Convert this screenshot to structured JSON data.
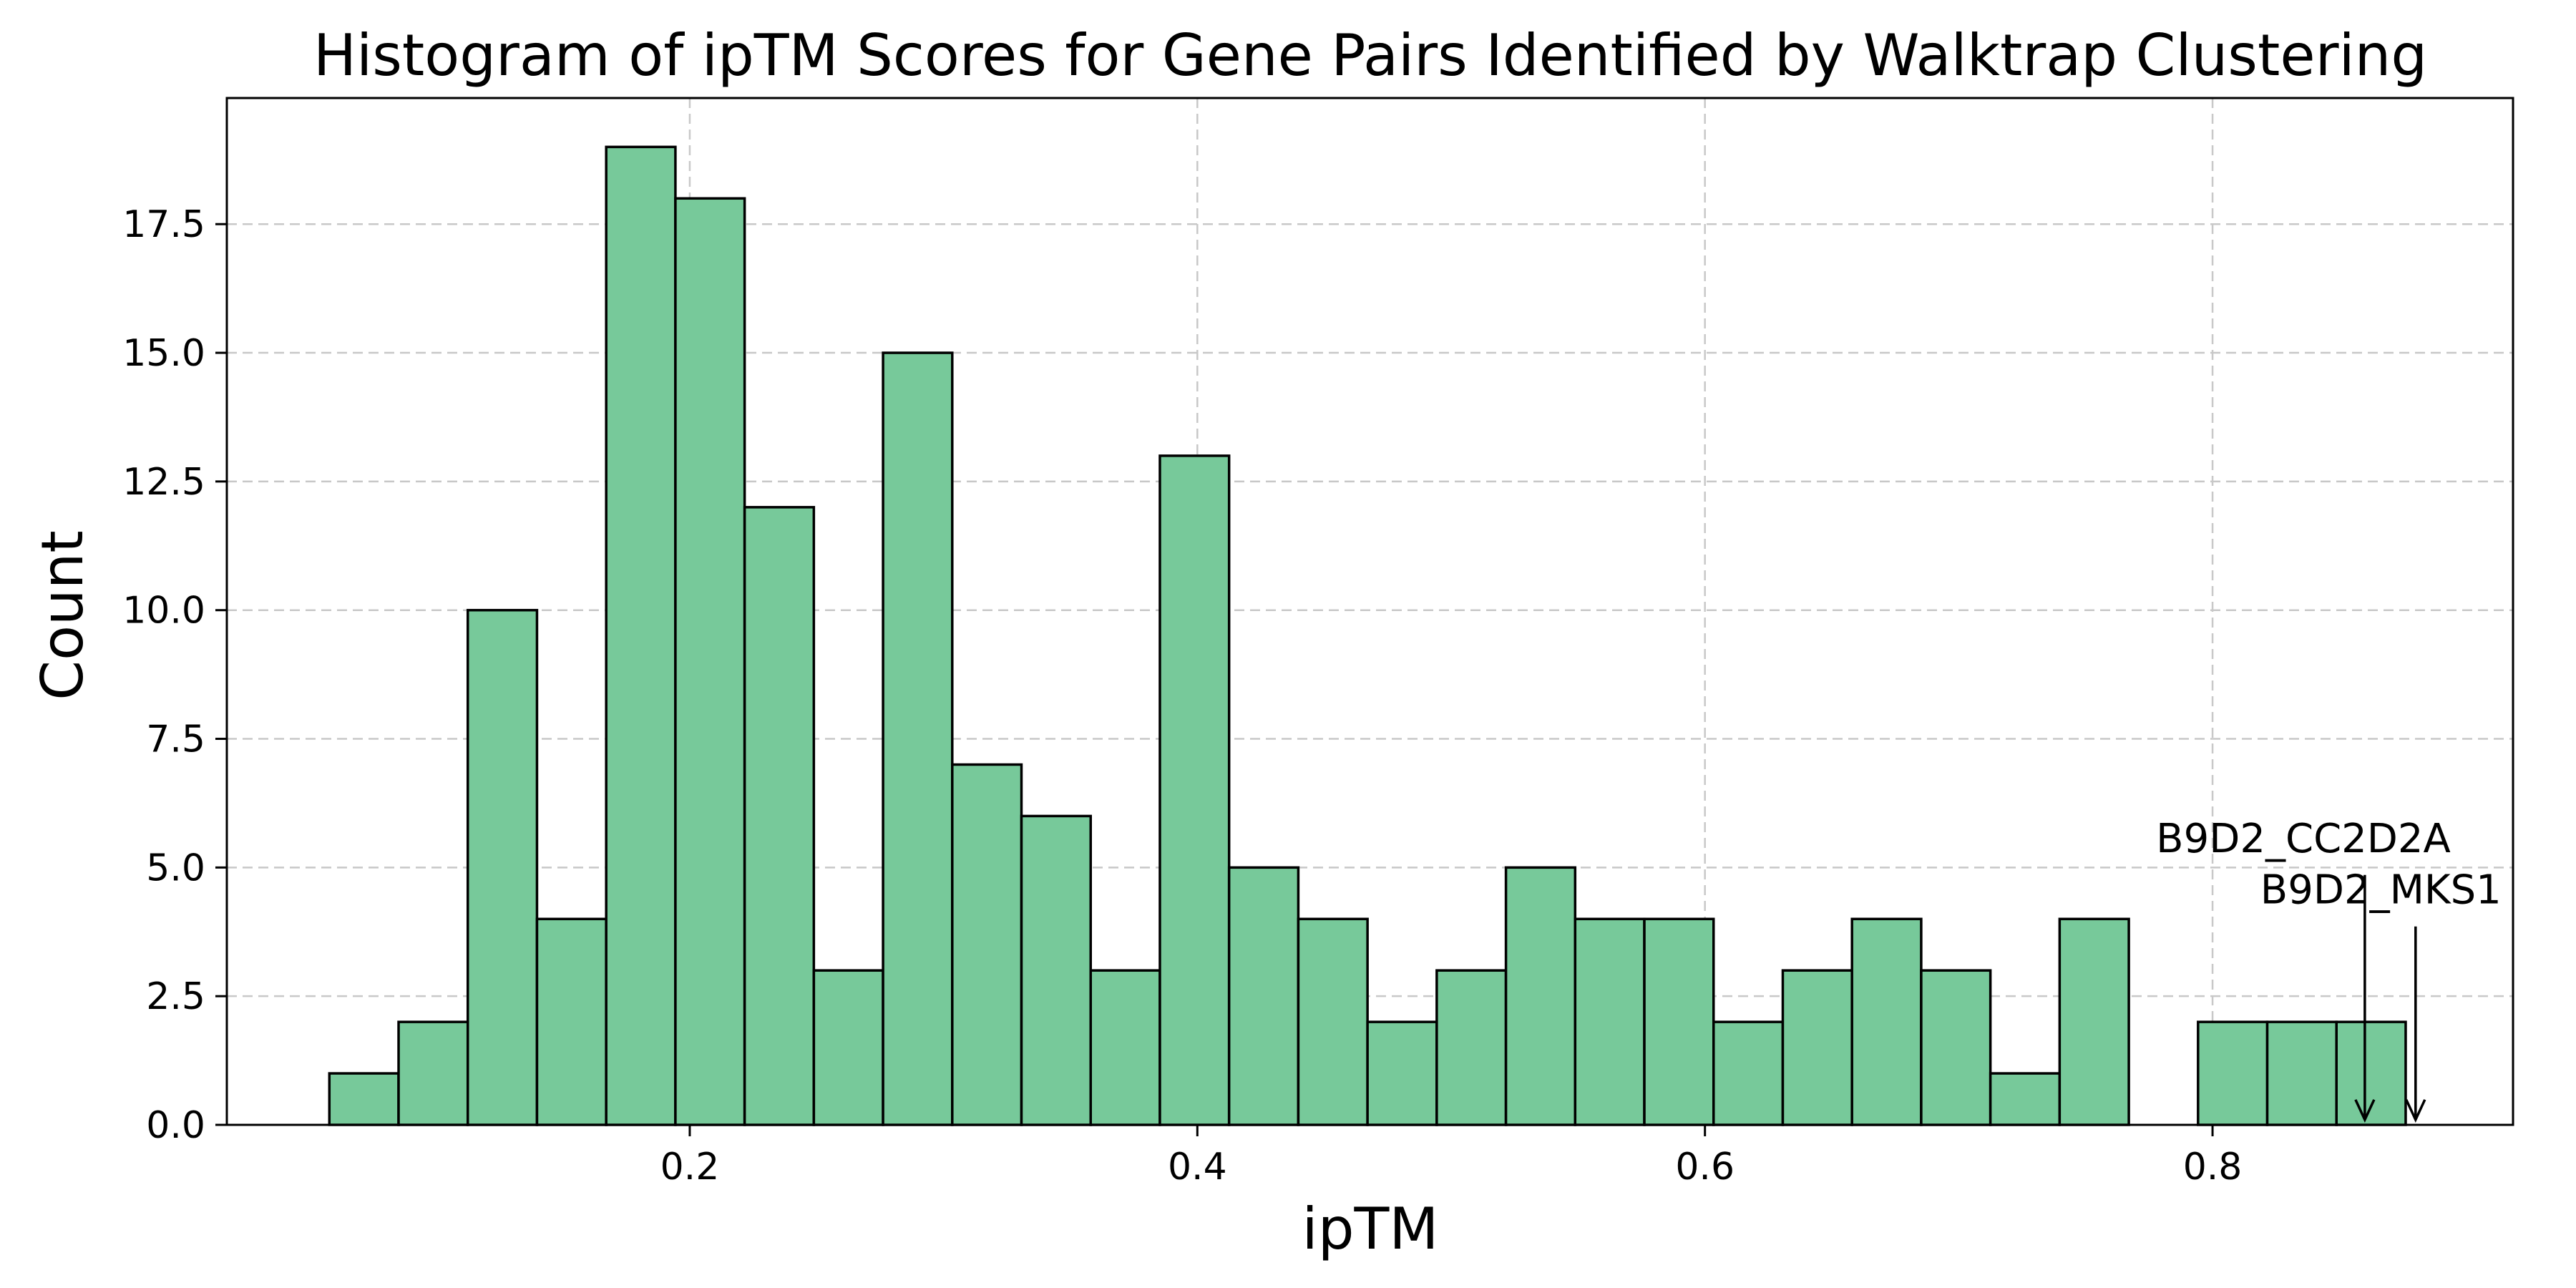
{
  "chart_data": {
    "type": "bar",
    "title": "Histogram of ipTM Scores for Gene Pairs Identified by Walktrap Clustering",
    "xlabel": "ipTM",
    "ylabel": "Count",
    "bin_start": 0.058,
    "bin_width": 0.02727,
    "values": [
      1,
      2,
      10,
      4,
      19,
      18,
      12,
      3,
      15,
      7,
      6,
      3,
      13,
      5,
      4,
      2,
      3,
      5,
      4,
      4,
      2,
      3,
      4,
      3,
      1,
      4,
      0,
      2,
      2,
      2
    ],
    "xlim": [
      0.0176,
      0.9184
    ],
    "ylim": [
      0,
      19.95
    ],
    "xticks": [
      {
        "value": 0.2,
        "label": "0.2"
      },
      {
        "value": 0.4,
        "label": "0.4"
      },
      {
        "value": 0.6,
        "label": "0.6"
      },
      {
        "value": 0.8,
        "label": "0.8"
      }
    ],
    "yticks": [
      {
        "value": 0.0,
        "label": "0.0"
      },
      {
        "value": 2.5,
        "label": "2.5"
      },
      {
        "value": 5.0,
        "label": "5.0"
      },
      {
        "value": 7.5,
        "label": "7.5"
      },
      {
        "value": 10.0,
        "label": "10.0"
      },
      {
        "value": 12.5,
        "label": "12.5"
      },
      {
        "value": 15.0,
        "label": "15.0"
      },
      {
        "value": 17.5,
        "label": "17.5"
      }
    ],
    "grid": true,
    "bar_color": "#77c99a",
    "annotations": [
      {
        "text": "B9D2_CC2D2A",
        "x": 0.86,
        "y": 0.1,
        "text_y": 5.3,
        "text_align": "end"
      },
      {
        "text": "B9D2_MKS1",
        "x": 0.88,
        "y": 0.1,
        "text_y": 4.3,
        "text_align": "end"
      }
    ]
  }
}
